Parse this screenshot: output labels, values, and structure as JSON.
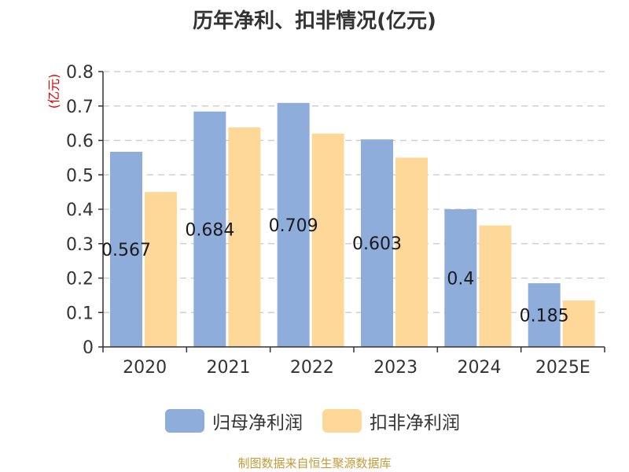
{
  "chart_data": {
    "type": "bar",
    "title": "历年净利、扣非情况(亿元)",
    "ylabel": "(亿元)",
    "categories": [
      "2020",
      "2021",
      "2022",
      "2023",
      "2024",
      "2025E"
    ],
    "series": [
      {
        "name": "归母净利润",
        "values": [
          0.567,
          0.684,
          0.709,
          0.603,
          0.4,
          0.185
        ],
        "labels": [
          "0.567",
          "0.684",
          "0.709",
          "0.603",
          "0.4",
          "0.185"
        ],
        "color": "#8eaddb"
      },
      {
        "name": "扣非净利润",
        "values": [
          0.45,
          0.638,
          0.62,
          0.55,
          0.353,
          0.135
        ],
        "color": "#fdd898"
      }
    ],
    "yticks": [
      "0",
      "0.1",
      "0.2",
      "0.3",
      "0.4",
      "0.5",
      "0.6",
      "0.7",
      "0.8"
    ],
    "ylim": [
      0,
      0.8
    ],
    "grid": true,
    "legend_position": "bottom"
  },
  "source": "制图数据来自恒生聚源数据库"
}
